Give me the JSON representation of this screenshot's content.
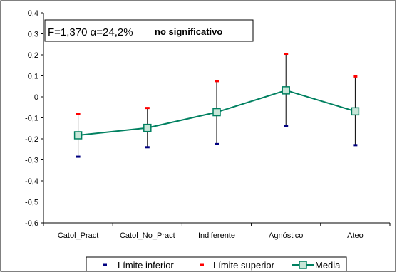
{
  "chart_data": {
    "type": "line",
    "categories": [
      "Catol_Pract",
      "Catol_No_Pract",
      "Indiferente",
      "Agnóstico",
      "Ateo"
    ],
    "series": [
      {
        "name": "Límite inferior",
        "values": [
          -0.285,
          -0.24,
          -0.225,
          -0.14,
          -0.23
        ],
        "color": "#000080",
        "marker": "dash"
      },
      {
        "name": "Límite superior",
        "values": [
          -0.082,
          -0.053,
          0.075,
          0.205,
          0.097
        ],
        "color": "#ff0000",
        "marker": "dash"
      },
      {
        "name": "Media",
        "values": [
          -0.183,
          -0.148,
          -0.073,
          0.031,
          -0.069
        ],
        "color": "#008060",
        "marker": "square"
      }
    ],
    "ylim": [
      -0.6,
      0.4
    ],
    "yticks": [
      "0,4",
      "0,3",
      "0,2",
      "0,1",
      "0",
      "-0,1",
      "-0,2",
      "-0,3",
      "-0,4",
      "-0,5",
      "-0,6"
    ],
    "ytick_values": [
      0.4,
      0.3,
      0.2,
      0.1,
      0,
      -0.1,
      -0.2,
      -0.3,
      -0.4,
      -0.5,
      -0.6
    ],
    "grid": false,
    "legend_position": "bottom",
    "annotation": {
      "text": "F=1,370 α=24,2%",
      "bold_text": "no significativo"
    }
  },
  "colors": {
    "lower": "#000080",
    "upper": "#ff0000",
    "mean_line": "#008060",
    "mean_marker_fill": "#c8e6d8",
    "whisker": "#000000"
  }
}
